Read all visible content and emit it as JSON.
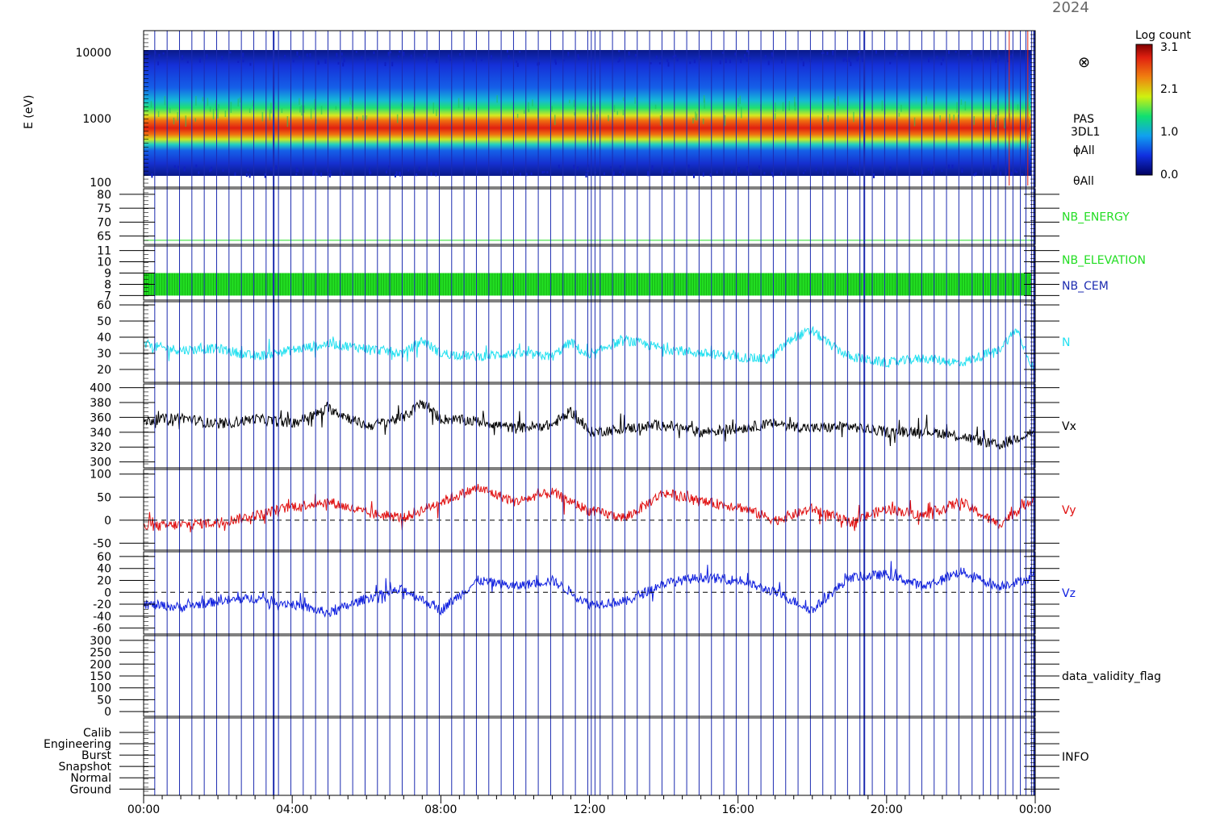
{
  "header": {
    "year_label": "2024"
  },
  "colorbar": {
    "title": "Log count",
    "ticks": [
      "3.1",
      "2.1",
      "1.0",
      "0.0"
    ]
  },
  "time_axis": {
    "ticks": [
      "00:00",
      "04:00",
      "08:00",
      "12:00",
      "16:00",
      "20:00",
      "00:00"
    ]
  },
  "spectrogram": {
    "ylabel": "E (eV)",
    "yticks": [
      "10000",
      "1000",
      "100"
    ],
    "side_labels": [
      "⊗",
      "PAS",
      "3DL1",
      "ϕAll",
      "θAll"
    ]
  },
  "colors": {
    "frame": "#000000",
    "grid": "#1c2bb0",
    "nb_energy": "#22dd22",
    "nb_elevation": "#22dd22",
    "nb_cem": "#1c2bb0",
    "density": "#22e0f0",
    "vx": "#000000",
    "vy": "#e01010",
    "vz": "#1020e0"
  },
  "chart_data": [
    {
      "type": "heatmap",
      "name": "PAS 3DL1 energy spectrogram",
      "x_range": [
        "00:00",
        "24:00"
      ],
      "ylabel": "E (eV)",
      "yscale": "log",
      "ylim": [
        100,
        15000
      ],
      "peak_energy_ev": 800,
      "colorbar_range": [
        0.0,
        3.1
      ],
      "colorbar_title": "Log count"
    },
    {
      "type": "line",
      "label": "NB_ENERGY",
      "yticks": [
        80,
        75,
        70,
        65
      ],
      "ylim": [
        62,
        82
      ],
      "constant_value": 63.5
    },
    {
      "type": "bar",
      "label": "NB_ELEVATION",
      "label2": "NB_CEM",
      "yticks": [
        11,
        10,
        9,
        8,
        7
      ],
      "ylim": [
        6.6,
        11.4
      ],
      "band": [
        7,
        9
      ]
    },
    {
      "type": "line",
      "label": "N",
      "yticks": [
        60,
        50,
        40,
        30,
        20
      ],
      "ylim": [
        12,
        62
      ],
      "x_hours": [
        0,
        1,
        2,
        3,
        4,
        5,
        6,
        7,
        7.5,
        8,
        9,
        10,
        11,
        11.5,
        12,
        12.5,
        13,
        14,
        15,
        16,
        16.8,
        17.5,
        18,
        18.5,
        19,
        20,
        21,
        22,
        23,
        23.5,
        24
      ],
      "values": [
        35,
        32,
        33,
        28,
        32,
        36,
        33,
        30,
        38,
        30,
        28,
        30,
        28,
        37,
        27,
        35,
        38,
        33,
        30,
        28,
        26,
        40,
        44,
        35,
        28,
        24,
        27,
        24,
        32,
        45,
        18
      ]
    },
    {
      "type": "line",
      "label": "Vx",
      "yticks": [
        400,
        380,
        360,
        340,
        320,
        300
      ],
      "ylim": [
        292,
        405
      ],
      "x_hours": [
        0,
        1,
        2,
        3,
        4,
        5,
        6,
        7,
        7.5,
        8,
        9,
        10,
        11,
        11.5,
        12,
        13,
        14,
        15,
        16,
        17,
        18,
        19,
        20,
        21,
        22,
        23,
        24
      ],
      "values": [
        355,
        360,
        350,
        358,
        352,
        372,
        348,
        360,
        380,
        358,
        355,
        345,
        350,
        368,
        340,
        345,
        350,
        340,
        345,
        352,
        345,
        348,
        340,
        342,
        335,
        322,
        342
      ]
    },
    {
      "type": "line",
      "label": "Vy",
      "yticks": [
        100,
        50,
        0,
        -50
      ],
      "ylim": [
        -65,
        110
      ],
      "x_hours": [
        0,
        1,
        2,
        3,
        4,
        5,
        6,
        7,
        8,
        9,
        10,
        11,
        12,
        13,
        14,
        15,
        16,
        17,
        18,
        19,
        20,
        21,
        22,
        23,
        24
      ],
      "values": [
        -15,
        -10,
        -5,
        10,
        30,
        40,
        15,
        5,
        40,
        70,
        40,
        60,
        20,
        5,
        60,
        40,
        30,
        0,
        25,
        -5,
        25,
        10,
        40,
        -10,
        50
      ]
    },
    {
      "type": "line",
      "label": "Vz",
      "yticks": [
        60,
        40,
        20,
        0,
        -20,
        -40,
        -60
      ],
      "ylim": [
        -70,
        68
      ],
      "x_hours": [
        0,
        1,
        2,
        3,
        4,
        5,
        6,
        7,
        8,
        9,
        10,
        11,
        12,
        13,
        14,
        15,
        16,
        17,
        18,
        19,
        20,
        21,
        22,
        23,
        24
      ],
      "values": [
        -20,
        -25,
        -15,
        -10,
        -20,
        -35,
        -10,
        5,
        -30,
        20,
        10,
        20,
        -20,
        -15,
        15,
        25,
        20,
        0,
        -30,
        25,
        30,
        10,
        35,
        10,
        25
      ]
    },
    {
      "type": "line",
      "label": "data_validity_flag",
      "yticks": [
        300,
        250,
        200,
        150,
        100,
        50,
        0
      ],
      "ylim": [
        -20,
        320
      ]
    },
    {
      "type": "line",
      "label": "INFO",
      "yticks": [
        "Calib",
        "Engineering",
        "Burst",
        "Snapshot",
        "Normal",
        "Ground"
      ]
    }
  ]
}
